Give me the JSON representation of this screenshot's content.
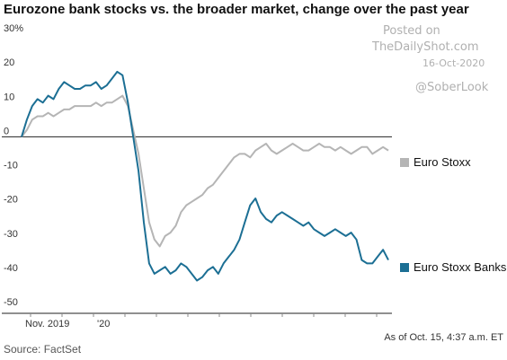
{
  "title": "Eurozone bank stocks vs. the broader market, change over the past year",
  "watermark": {
    "posted": "Posted on",
    "site": "TheDailyShot.com",
    "date": "16-Oct-2020",
    "handle": "@SoberLook"
  },
  "source": "Source: FactSet",
  "note": "As of Oct. 15, 4:37 a.m. ET",
  "colors": {
    "series_gray": "#b5b5b5",
    "series_teal": "#1c6f94",
    "axis": "#222222",
    "tick": "#888888"
  },
  "chart_data": {
    "type": "line",
    "x_tick_labels": [
      "Nov. 2019",
      "'20"
    ],
    "y_ticks": [
      30,
      20,
      10,
      0,
      -10,
      -20,
      -30,
      -40,
      -50
    ],
    "y_tick_labels": [
      "30%",
      "20",
      "10",
      "0",
      "-10",
      "-20",
      "-30",
      "-40",
      "-50"
    ],
    "ylim": [
      -50,
      30
    ],
    "grid": false,
    "x_points": 70,
    "series": [
      {
        "name": "Euro Stoxx",
        "color": "#b5b5b5",
        "values": [
          0,
          2,
          5,
          6,
          6,
          7,
          6,
          7,
          8,
          8,
          9,
          9,
          9,
          9,
          10,
          9,
          10,
          10,
          11,
          12,
          9,
          2,
          -5,
          -15,
          -25,
          -30,
          -32,
          -29,
          -28,
          -26,
          -22,
          -20,
          -19,
          -18,
          -17,
          -15,
          -14,
          -12,
          -10,
          -8,
          -6,
          -5,
          -5,
          -6,
          -4,
          -3,
          -2,
          -4,
          -5,
          -4,
          -3,
          -2,
          -3,
          -4,
          -4,
          -3,
          -2,
          -3,
          -3,
          -4,
          -3,
          -4,
          -5,
          -4,
          -3,
          -3,
          -5,
          -4,
          -3,
          -4
        ]
      },
      {
        "name": "Euro Stoxx Banks",
        "color": "#1c6f94",
        "values": [
          0,
          5,
          9,
          11,
          10,
          12,
          11,
          14,
          16,
          15,
          14,
          14,
          15,
          15,
          16,
          14,
          15,
          17,
          19,
          18,
          10,
          0,
          -10,
          -25,
          -37,
          -40,
          -39,
          -38,
          -40,
          -39,
          -37,
          -38,
          -40,
          -42,
          -41,
          -39,
          -38,
          -40,
          -37,
          -35,
          -33,
          -30,
          -25,
          -20,
          -18,
          -22,
          -24,
          -25,
          -23,
          -22,
          -23,
          -24,
          -25,
          -26,
          -25,
          -27,
          -28,
          -29,
          -28,
          -27,
          -28,
          -29,
          -28,
          -30,
          -36,
          -37,
          -37,
          -35,
          -33,
          -36
        ]
      }
    ]
  }
}
